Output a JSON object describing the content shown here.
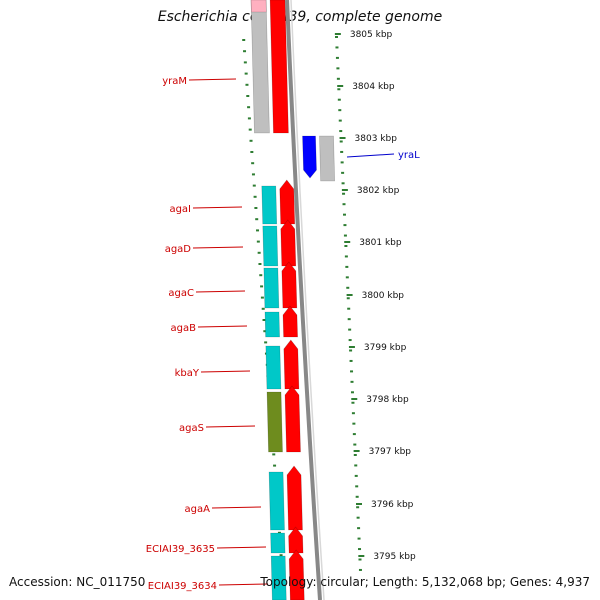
{
  "title": "Escherichia coli IAI39, complete genome",
  "footer": {
    "accession": "Accession: NC_011750",
    "summary": "Topology: circular; Length: 5,132,068 bp; Genes: 4,937"
  },
  "colors": {
    "cds": "#ff0000",
    "blue_feature": "#0000ff",
    "gray_feature": "#bfbfbf",
    "cyan_feature": "#00c8c8",
    "olive_feature": "#6e8c1e",
    "pink_feature": "#ffb0c0",
    "tick": "#2e7d32",
    "backbone": "#888888",
    "label_red": "#cc0000",
    "label_blue": "#0000cc"
  },
  "ticks": [
    {
      "label": "3805 kbp"
    },
    {
      "label": "3804 kbp"
    },
    {
      "label": "3803 kbp"
    },
    {
      "label": "3802 kbp"
    },
    {
      "label": "3801 kbp"
    },
    {
      "label": "3800 kbp"
    },
    {
      "label": "3799 kbp"
    },
    {
      "label": "3798 kbp"
    },
    {
      "label": "3797 kbp"
    },
    {
      "label": "3796 kbp"
    },
    {
      "label": "3795 kbp"
    }
  ],
  "genes": [
    {
      "name": "yraM",
      "strand": "reverse"
    },
    {
      "name": "yraL",
      "strand": "forward"
    },
    {
      "name": "agaI",
      "strand": "reverse"
    },
    {
      "name": "agaD",
      "strand": "reverse"
    },
    {
      "name": "agaC",
      "strand": "reverse"
    },
    {
      "name": "agaB",
      "strand": "reverse"
    },
    {
      "name": "kbaY",
      "strand": "reverse"
    },
    {
      "name": "agaS",
      "strand": "reverse"
    },
    {
      "name": "agaA",
      "strand": "reverse"
    },
    {
      "name": "ECIAI39_3635",
      "strand": "reverse"
    },
    {
      "name": "ECIAI39_3634",
      "strand": "reverse"
    }
  ]
}
